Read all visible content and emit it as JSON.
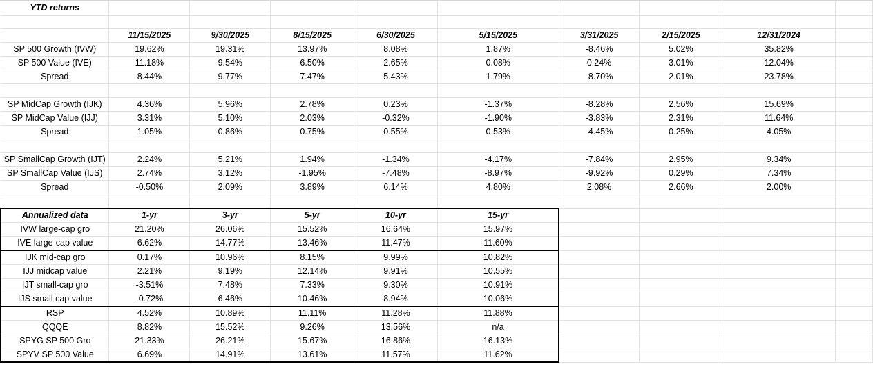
{
  "ytd": {
    "title": "YTD returns",
    "dates": [
      "11/15/2025",
      "9/30/2025",
      "8/15/2025",
      "6/30/2025",
      "5/15/2025",
      "3/31/2025",
      "2/15/2025",
      "12/31/2024"
    ],
    "groups": [
      [
        {
          "label": "SP 500 Growth (IVW)",
          "values": [
            "19.62%",
            "19.31%",
            "13.97%",
            "8.08%",
            "1.87%",
            "-8.46%",
            "5.02%",
            "35.82%"
          ]
        },
        {
          "label": "SP 500 Value (IVE)",
          "values": [
            "11.18%",
            "9.54%",
            "6.50%",
            "2.65%",
            "0.08%",
            "0.24%",
            "3.01%",
            "12.04%"
          ]
        },
        {
          "label": "Spread",
          "values": [
            "8.44%",
            "9.77%",
            "7.47%",
            "5.43%",
            "1.79%",
            "-8.70%",
            "2.01%",
            "23.78%"
          ]
        }
      ],
      [
        {
          "label": "SP MidCap Growth (IJK)",
          "values": [
            "4.36%",
            "5.96%",
            "2.78%",
            "0.23%",
            "-1.37%",
            "-8.28%",
            "2.56%",
            "15.69%"
          ]
        },
        {
          "label": "SP MidCap Value (IJJ)",
          "values": [
            "3.31%",
            "5.10%",
            "2.03%",
            "-0.32%",
            "-1.90%",
            "-3.83%",
            "2.31%",
            "11.64%"
          ]
        },
        {
          "label": "Spread",
          "values": [
            "1.05%",
            "0.86%",
            "0.75%",
            "0.55%",
            "0.53%",
            "-4.45%",
            "0.25%",
            "4.05%"
          ]
        }
      ],
      [
        {
          "label": "SP SmallCap Growth (IJT)",
          "values": [
            "2.24%",
            "5.21%",
            "1.94%",
            "-1.34%",
            "-4.17%",
            "-7.84%",
            "2.95%",
            "9.34%"
          ]
        },
        {
          "label": "SP SmallCap Value (IJS)",
          "values": [
            "2.74%",
            "3.12%",
            "-1.95%",
            "-7.48%",
            "-8.97%",
            "-9.92%",
            "0.29%",
            "7.34%"
          ]
        },
        {
          "label": "Spread",
          "values": [
            "-0.50%",
            "2.09%",
            "3.89%",
            "6.14%",
            "4.80%",
            "2.08%",
            "2.66%",
            "2.00%"
          ]
        }
      ]
    ]
  },
  "annualized": {
    "title": "Annualized data",
    "periods": [
      "1-yr",
      "3-yr",
      "5-yr",
      "10-yr",
      "15-yr"
    ],
    "groups": [
      [
        {
          "label": "IVW large-cap gro",
          "values": [
            "21.20%",
            "26.06%",
            "15.52%",
            "16.64%",
            "15.97%"
          ]
        },
        {
          "label": "IVE  large-cap value",
          "values": [
            "6.62%",
            "14.77%",
            "13.46%",
            "11.47%",
            "11.60%"
          ]
        }
      ],
      [
        {
          "label": "IJK   mid-cap gro",
          "values": [
            "0.17%",
            "10.96%",
            "8.15%",
            "9.99%",
            "10.82%"
          ]
        },
        {
          "label": "IJJ  midcap value",
          "values": [
            "2.21%",
            "9.19%",
            "12.14%",
            "9.91%",
            "10.55%"
          ]
        },
        {
          "label": "IJT small-cap gro",
          "values": [
            "-3.51%",
            "7.48%",
            "7.33%",
            "9.30%",
            "10.91%"
          ]
        },
        {
          "label": "IJS small cap value",
          "values": [
            "-0.72%",
            "6.46%",
            "10.46%",
            "8.94%",
            "10.06%"
          ]
        }
      ],
      [
        {
          "label": "RSP",
          "values": [
            "4.52%",
            "10.89%",
            "11.11%",
            "11.28%",
            "11.88%"
          ]
        },
        {
          "label": "QQQE",
          "values": [
            "8.82%",
            "15.52%",
            "9.26%",
            "13.56%",
            "n/a"
          ]
        },
        {
          "label": "SPYG SP 500 Gro",
          "values": [
            "21.33%",
            "26.21%",
            "15.67%",
            "16.86%",
            "16.13%"
          ]
        },
        {
          "label": "SPYV SP 500 Value",
          "values": [
            "6.69%",
            "14.91%",
            "13.61%",
            "11.57%",
            "11.62%"
          ]
        }
      ]
    ]
  }
}
